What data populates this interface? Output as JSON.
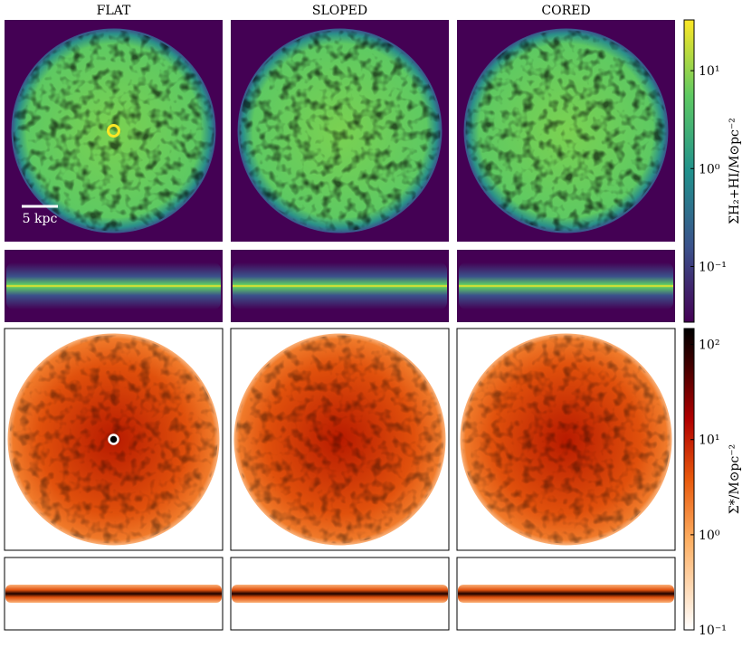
{
  "figure": {
    "columns": [
      "FLAT",
      "SLOPED",
      "CORED"
    ],
    "scale_bar": "5 kpc",
    "colorbars": [
      {
        "label": "ΣH₂+HI/M⊙pc⁻²",
        "log": true,
        "lim": [
          0.027,
          33
        ],
        "ticks": [
          {
            "value": 0.1,
            "label": "10⁻¹"
          },
          {
            "value": 1,
            "label": "10⁰"
          },
          {
            "value": 10,
            "label": "10¹"
          }
        ]
      },
      {
        "label": "Σ*/M⊙pc⁻²",
        "log": true,
        "lim": [
          0.1,
          147
        ],
        "ticks": [
          {
            "value": 0.1,
            "label": "10⁻¹"
          },
          {
            "value": 1,
            "label": "10⁰"
          },
          {
            "value": 10,
            "label": "10¹"
          },
          {
            "value": 100,
            "label": "10²"
          }
        ]
      }
    ]
  }
}
